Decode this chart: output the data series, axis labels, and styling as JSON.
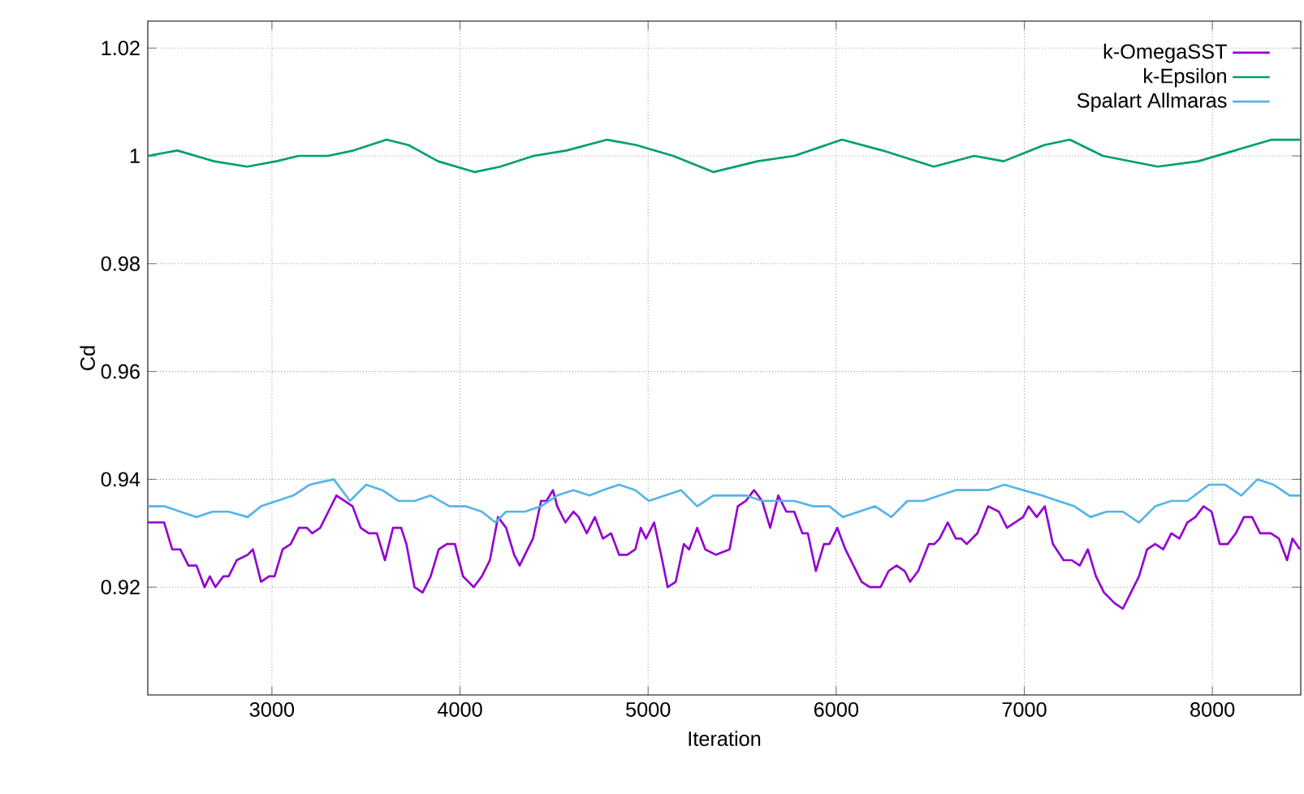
{
  "chart_data": {
    "type": "line",
    "xlabel": "Iteration",
    "ylabel": "Cd",
    "xlim": [
      2340,
      8470
    ],
    "ylim": [
      0.9,
      1.025
    ],
    "xticks": [
      3000,
      4000,
      5000,
      6000,
      7000,
      8000
    ],
    "yticks": [
      0.92,
      0.94,
      0.96,
      0.98,
      1,
      1.02
    ],
    "grid": true,
    "legend": "top right",
    "series": [
      {
        "name": "k-OmegaSST",
        "color": "#9400d3",
        "x": [
          2341,
          2427,
          2470,
          2513,
          2556,
          2599,
          2642,
          2670,
          2699,
          2742,
          2770,
          2813,
          2871,
          2899,
          2942,
          2985,
          3014,
          3057,
          3100,
          3143,
          3186,
          3214,
          3257,
          3300,
          3343,
          3386,
          3429,
          3472,
          3515,
          3558,
          3601,
          3644,
          3687,
          3715,
          3758,
          3801,
          3844,
          3887,
          3930,
          3973,
          4016,
          4073,
          4116,
          4159,
          4202,
          4245,
          4288,
          4317,
          4345,
          4388,
          4431,
          4460,
          4494,
          4517,
          4560,
          4603,
          4631,
          4674,
          4717,
          4760,
          4803,
          4846,
          4889,
          4932,
          4961,
          4989,
          5032,
          5075,
          5104,
          5147,
          5190,
          5218,
          5261,
          5304,
          5361,
          5433,
          5477,
          5520,
          5563,
          5606,
          5649,
          5692,
          5735,
          5777,
          5820,
          5849,
          5892,
          5935,
          5964,
          6006,
          6049,
          6092,
          6135,
          6178,
          6236,
          6279,
          6321,
          6364,
          6393,
          6436,
          6493,
          6522,
          6550,
          6593,
          6636,
          6665,
          6694,
          6751,
          6808,
          6865,
          6908,
          6951,
          6994,
          7023,
          7066,
          7109,
          7152,
          7209,
          7252,
          7295,
          7338,
          7381,
          7424,
          7481,
          7524,
          7567,
          7610,
          7653,
          7696,
          7739,
          7782,
          7825,
          7867,
          7910,
          7953,
          7996,
          8039,
          8082,
          8125,
          8168,
          8211,
          8254,
          8311,
          8354,
          8397,
          8426,
          8466
        ],
        "values": [
          0.932,
          0.932,
          0.927,
          0.927,
          0.924,
          0.924,
          0.92,
          0.922,
          0.92,
          0.922,
          0.922,
          0.925,
          0.926,
          0.927,
          0.921,
          0.922,
          0.922,
          0.927,
          0.928,
          0.931,
          0.931,
          0.93,
          0.931,
          0.934,
          0.937,
          0.936,
          0.935,
          0.931,
          0.93,
          0.93,
          0.925,
          0.931,
          0.931,
          0.928,
          0.92,
          0.919,
          0.922,
          0.927,
          0.928,
          0.928,
          0.922,
          0.92,
          0.922,
          0.925,
          0.933,
          0.931,
          0.926,
          0.924,
          0.926,
          0.929,
          0.936,
          0.936,
          0.938,
          0.935,
          0.932,
          0.934,
          0.933,
          0.93,
          0.933,
          0.929,
          0.93,
          0.926,
          0.926,
          0.927,
          0.931,
          0.929,
          0.932,
          0.925,
          0.92,
          0.921,
          0.928,
          0.927,
          0.931,
          0.927,
          0.926,
          0.927,
          0.935,
          0.936,
          0.938,
          0.936,
          0.931,
          0.937,
          0.934,
          0.934,
          0.93,
          0.93,
          0.923,
          0.928,
          0.928,
          0.931,
          0.927,
          0.924,
          0.921,
          0.92,
          0.92,
          0.923,
          0.924,
          0.923,
          0.921,
          0.923,
          0.928,
          0.928,
          0.929,
          0.932,
          0.929,
          0.929,
          0.928,
          0.93,
          0.935,
          0.934,
          0.931,
          0.932,
          0.933,
          0.935,
          0.933,
          0.935,
          0.928,
          0.925,
          0.925,
          0.924,
          0.927,
          0.922,
          0.919,
          0.917,
          0.916,
          0.919,
          0.922,
          0.927,
          0.928,
          0.927,
          0.93,
          0.929,
          0.932,
          0.933,
          0.935,
          0.934,
          0.928,
          0.928,
          0.93,
          0.933,
          0.933,
          0.93,
          0.93,
          0.929,
          0.925,
          0.929,
          0.927
        ]
      },
      {
        "name": "k-Epsilon",
        "color": "#009e73",
        "x": [
          2341,
          2497,
          2692,
          2868,
          3024,
          3142,
          3298,
          3434,
          3610,
          3727,
          3883,
          4079,
          4215,
          4391,
          4567,
          4782,
          4938,
          5133,
          5348,
          5582,
          5777,
          6031,
          6246,
          6519,
          6734,
          6890,
          7105,
          7242,
          7418,
          7710,
          7925,
          8120,
          8316,
          8466
        ],
        "values": [
          1.0,
          1.001,
          0.999,
          0.998,
          0.999,
          1.0,
          1.0,
          1.001,
          1.003,
          1.002,
          0.999,
          0.997,
          0.998,
          1.0,
          1.001,
          1.003,
          1.002,
          1.0,
          0.997,
          0.999,
          1.0,
          1.003,
          1.001,
          0.998,
          1.0,
          0.999,
          1.002,
          1.003,
          1.0,
          0.998,
          0.999,
          1.001,
          1.003,
          1.003
        ]
      },
      {
        "name": "Spalart Allmaras",
        "color": "#56b4e9",
        "x": [
          2341,
          2427,
          2513,
          2599,
          2685,
          2770,
          2871,
          2942,
          3028,
          3114,
          3200,
          3329,
          3415,
          3501,
          3586,
          3672,
          3758,
          3844,
          3944,
          4030,
          4116,
          4188,
          4245,
          4345,
          4431,
          4517,
          4603,
          4689,
          4760,
          4846,
          4932,
          5004,
          5090,
          5175,
          5261,
          5347,
          5433,
          5520,
          5606,
          5692,
          5777,
          5878,
          5964,
          6035,
          6121,
          6207,
          6293,
          6379,
          6465,
          6550,
          6636,
          6722,
          6808,
          6894,
          6994,
          7094,
          7180,
          7266,
          7352,
          7438,
          7524,
          7610,
          7696,
          7782,
          7867,
          7982,
          8068,
          8154,
          8240,
          8326,
          8411,
          8466
        ],
        "values": [
          0.935,
          0.935,
          0.934,
          0.933,
          0.934,
          0.934,
          0.933,
          0.935,
          0.936,
          0.937,
          0.939,
          0.94,
          0.936,
          0.939,
          0.938,
          0.936,
          0.936,
          0.937,
          0.935,
          0.935,
          0.934,
          0.932,
          0.934,
          0.934,
          0.935,
          0.937,
          0.938,
          0.937,
          0.938,
          0.939,
          0.938,
          0.936,
          0.937,
          0.938,
          0.935,
          0.937,
          0.937,
          0.937,
          0.936,
          0.936,
          0.936,
          0.935,
          0.935,
          0.933,
          0.934,
          0.935,
          0.933,
          0.936,
          0.936,
          0.937,
          0.938,
          0.938,
          0.938,
          0.939,
          0.938,
          0.937,
          0.936,
          0.935,
          0.933,
          0.934,
          0.934,
          0.932,
          0.935,
          0.936,
          0.936,
          0.939,
          0.939,
          0.937,
          0.94,
          0.939,
          0.937,
          0.937
        ]
      }
    ]
  }
}
